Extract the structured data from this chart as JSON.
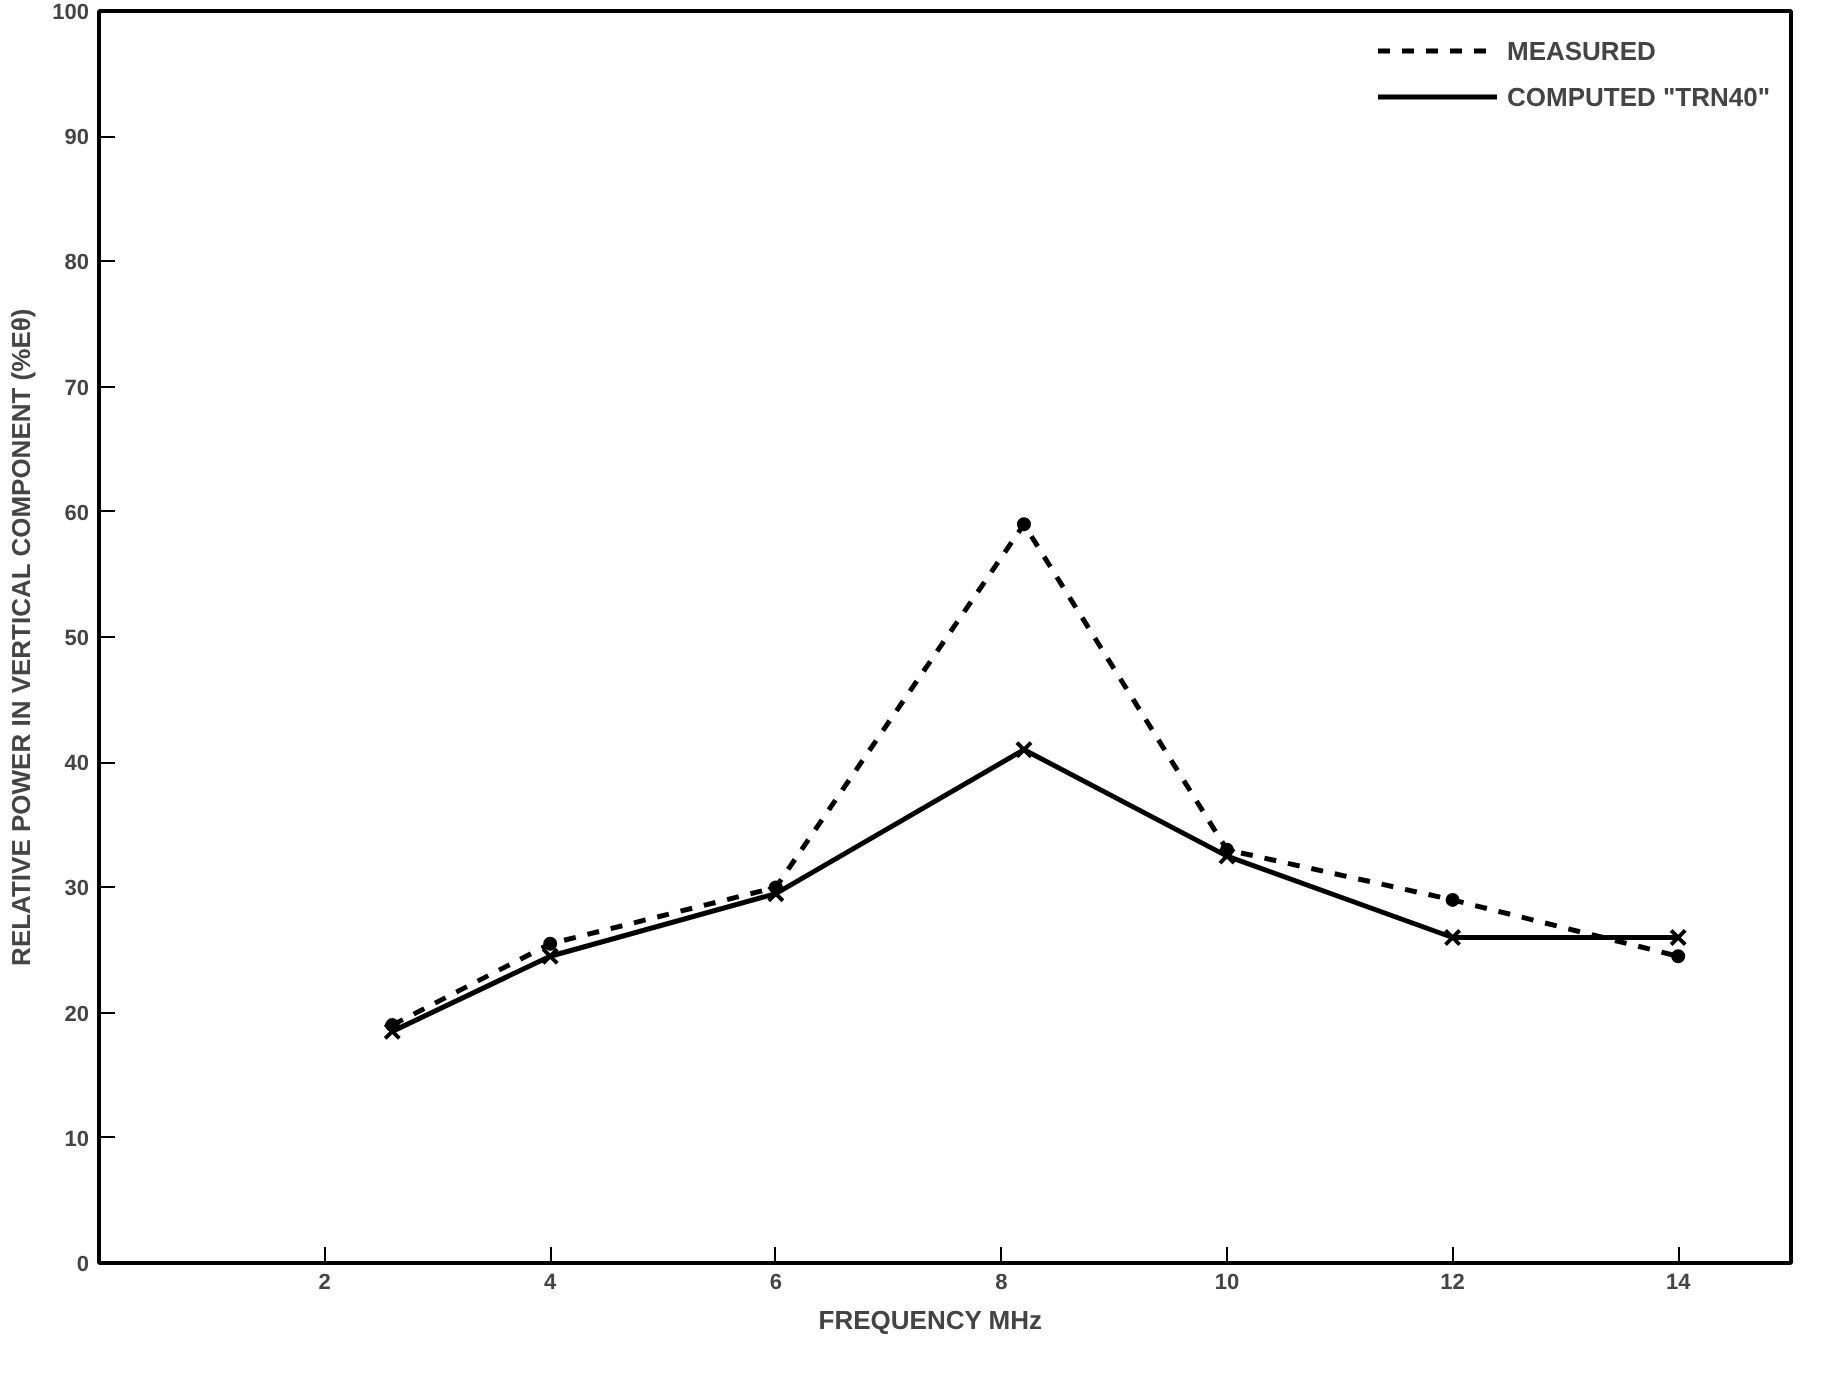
{
  "chart_data": {
    "type": "line",
    "xlabel": "FREQUENCY     MHz",
    "ylabel": "RELATIVE POWER IN VERTICAL COMPONENT (%Eθ)",
    "xlim": [
      0,
      15
    ],
    "ylim": [
      0,
      100
    ],
    "xticks": [
      2,
      4,
      6,
      8,
      10,
      12,
      14
    ],
    "yticks": [
      0,
      10,
      20,
      30,
      40,
      50,
      60,
      70,
      80,
      90,
      100
    ],
    "grid": false,
    "legend": "top right",
    "series": [
      {
        "name": "MEASURED",
        "color": "#000000",
        "line_style": "dashed",
        "marker": "circle",
        "x": [
          2.6,
          4,
          6,
          8.2,
          10,
          12,
          14
        ],
        "values": [
          19,
          25.5,
          30,
          59,
          33,
          29,
          24.5
        ]
      },
      {
        "name": "COMPUTED \"TRN40\"",
        "color": "#000000",
        "line_style": "solid",
        "marker": "cross",
        "x": [
          2.6,
          4,
          6,
          8.2,
          10,
          12,
          14
        ],
        "values": [
          18.5,
          24.5,
          29.5,
          41,
          32.5,
          26,
          26
        ]
      }
    ]
  }
}
